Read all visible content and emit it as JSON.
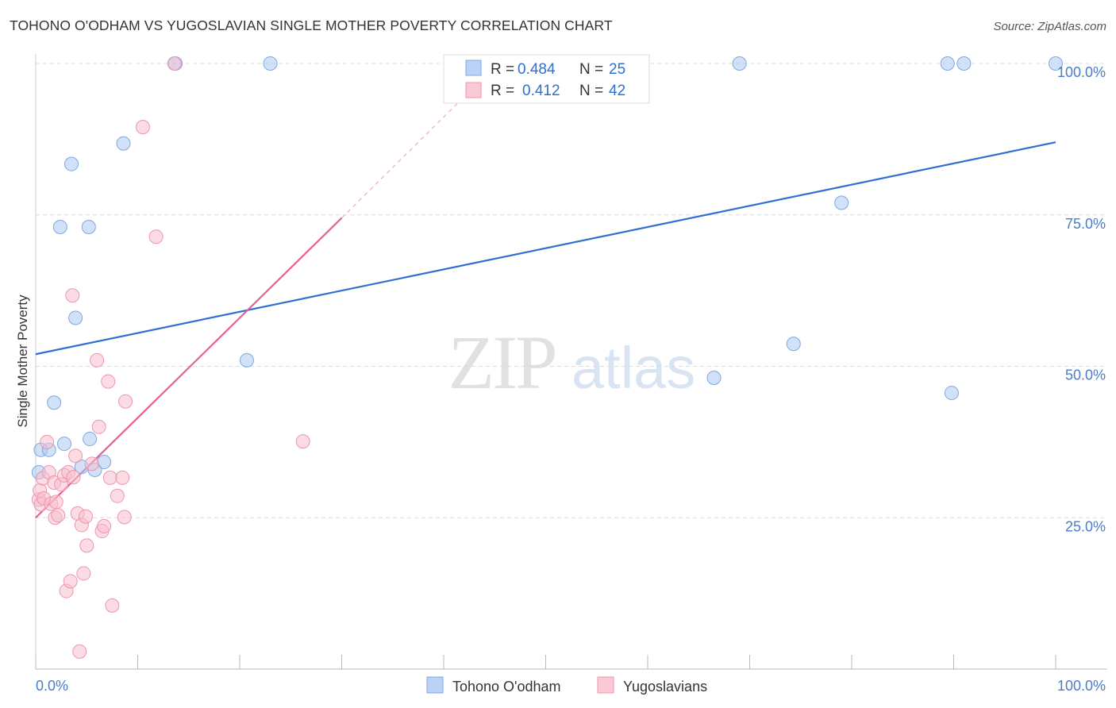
{
  "header": {
    "title": "TOHONO O'ODHAM VS YUGOSLAVIAN SINGLE MOTHER POVERTY CORRELATION CHART",
    "source": "Source: ZipAtlas.com"
  },
  "watermark": {
    "zip": "ZIP",
    "atlas": "atlas"
  },
  "chart_data": {
    "type": "scatter",
    "title": "TOHONO O'ODHAM VS YUGOSLAVIAN SINGLE MOTHER POVERTY CORRELATION CHART",
    "xlabel": "",
    "ylabel": "Single Mother Poverty",
    "xlim": [
      0,
      100
    ],
    "ylim": [
      0,
      100
    ],
    "x_tick_labels": [
      "0.0%",
      "100.0%"
    ],
    "y_ticks": [
      25,
      50,
      75,
      100
    ],
    "y_tick_labels": [
      "25.0%",
      "50.0%",
      "75.0%",
      "100.0%"
    ],
    "grid": true,
    "legend_top": [
      {
        "r_label": "R = ",
        "r_value": "0.484",
        "n_label": "N = ",
        "n_value": "25"
      },
      {
        "r_label": "R = ",
        "r_value": "0.412",
        "n_label": "N = ",
        "n_value": "42"
      }
    ],
    "series": [
      {
        "name": "Tohono O'odham",
        "color": "#a9c8f2",
        "stroke": "#7ea9e0",
        "line_color": "#2f6fcf",
        "trend": {
          "x0": 0,
          "y0": 52.0,
          "x1": 100,
          "y1": 87.0
        },
        "points": [
          [
            0.3,
            32.5
          ],
          [
            0.5,
            36.2
          ],
          [
            1.3,
            36.2
          ],
          [
            1.8,
            44.0
          ],
          [
            2.4,
            73.0
          ],
          [
            2.8,
            37.2
          ],
          [
            3.5,
            83.4
          ],
          [
            3.9,
            58.0
          ],
          [
            4.5,
            33.4
          ],
          [
            5.2,
            73.0
          ],
          [
            5.3,
            38.0
          ],
          [
            5.8,
            32.9
          ],
          [
            6.7,
            34.2
          ],
          [
            8.6,
            86.8
          ],
          [
            13.7,
            100
          ],
          [
            20.7,
            51.0
          ],
          [
            23.0,
            100
          ],
          [
            66.5,
            48.1
          ],
          [
            69.0,
            100
          ],
          [
            74.3,
            53.7
          ],
          [
            79.0,
            77.0
          ],
          [
            89.4,
            100
          ],
          [
            89.8,
            45.6
          ],
          [
            91.0,
            100
          ],
          [
            100,
            100
          ]
        ]
      },
      {
        "name": "Yugoslavians",
        "color": "#f7bfcf",
        "stroke": "#ee95ad",
        "line_color": "#e8608f",
        "trend": {
          "x0": 0,
          "y0": 25.0,
          "x1": 30,
          "y1": 74.5,
          "dash_to_x": 42,
          "dash_to_y": 94.5
        },
        "points": [
          [
            0.3,
            28.0
          ],
          [
            0.4,
            29.5
          ],
          [
            0.5,
            27.2
          ],
          [
            0.7,
            31.5
          ],
          [
            0.8,
            28.2
          ],
          [
            1.1,
            37.5
          ],
          [
            1.3,
            32.5
          ],
          [
            1.5,
            27.3
          ],
          [
            1.8,
            30.8
          ],
          [
            1.9,
            25.0
          ],
          [
            2.0,
            27.6
          ],
          [
            2.2,
            25.4
          ],
          [
            2.5,
            30.5
          ],
          [
            2.8,
            32.0
          ],
          [
            3.0,
            12.9
          ],
          [
            3.2,
            32.5
          ],
          [
            3.4,
            14.5
          ],
          [
            3.6,
            61.7
          ],
          [
            3.7,
            31.7
          ],
          [
            3.9,
            35.2
          ],
          [
            4.1,
            25.7
          ],
          [
            4.3,
            2.9
          ],
          [
            4.5,
            23.8
          ],
          [
            4.7,
            15.8
          ],
          [
            4.9,
            25.2
          ],
          [
            5.0,
            20.4
          ],
          [
            5.5,
            33.9
          ],
          [
            6.0,
            51.0
          ],
          [
            6.2,
            40.0
          ],
          [
            6.5,
            22.8
          ],
          [
            6.7,
            23.6
          ],
          [
            7.1,
            47.5
          ],
          [
            7.3,
            31.6
          ],
          [
            7.5,
            10.5
          ],
          [
            8.0,
            28.6
          ],
          [
            8.5,
            31.6
          ],
          [
            8.7,
            25.1
          ],
          [
            8.8,
            44.2
          ],
          [
            10.5,
            89.5
          ],
          [
            11.8,
            71.4
          ],
          [
            13.6,
            100
          ],
          [
            26.2,
            37.6
          ]
        ]
      }
    ]
  },
  "bottom_legend": [
    {
      "label": "Tohono O'odham",
      "color": "#a9c8f2",
      "stroke": "#7ea9e0"
    },
    {
      "label": "Yugoslavians",
      "color": "#f7bfcf",
      "stroke": "#ee95ad"
    }
  ]
}
